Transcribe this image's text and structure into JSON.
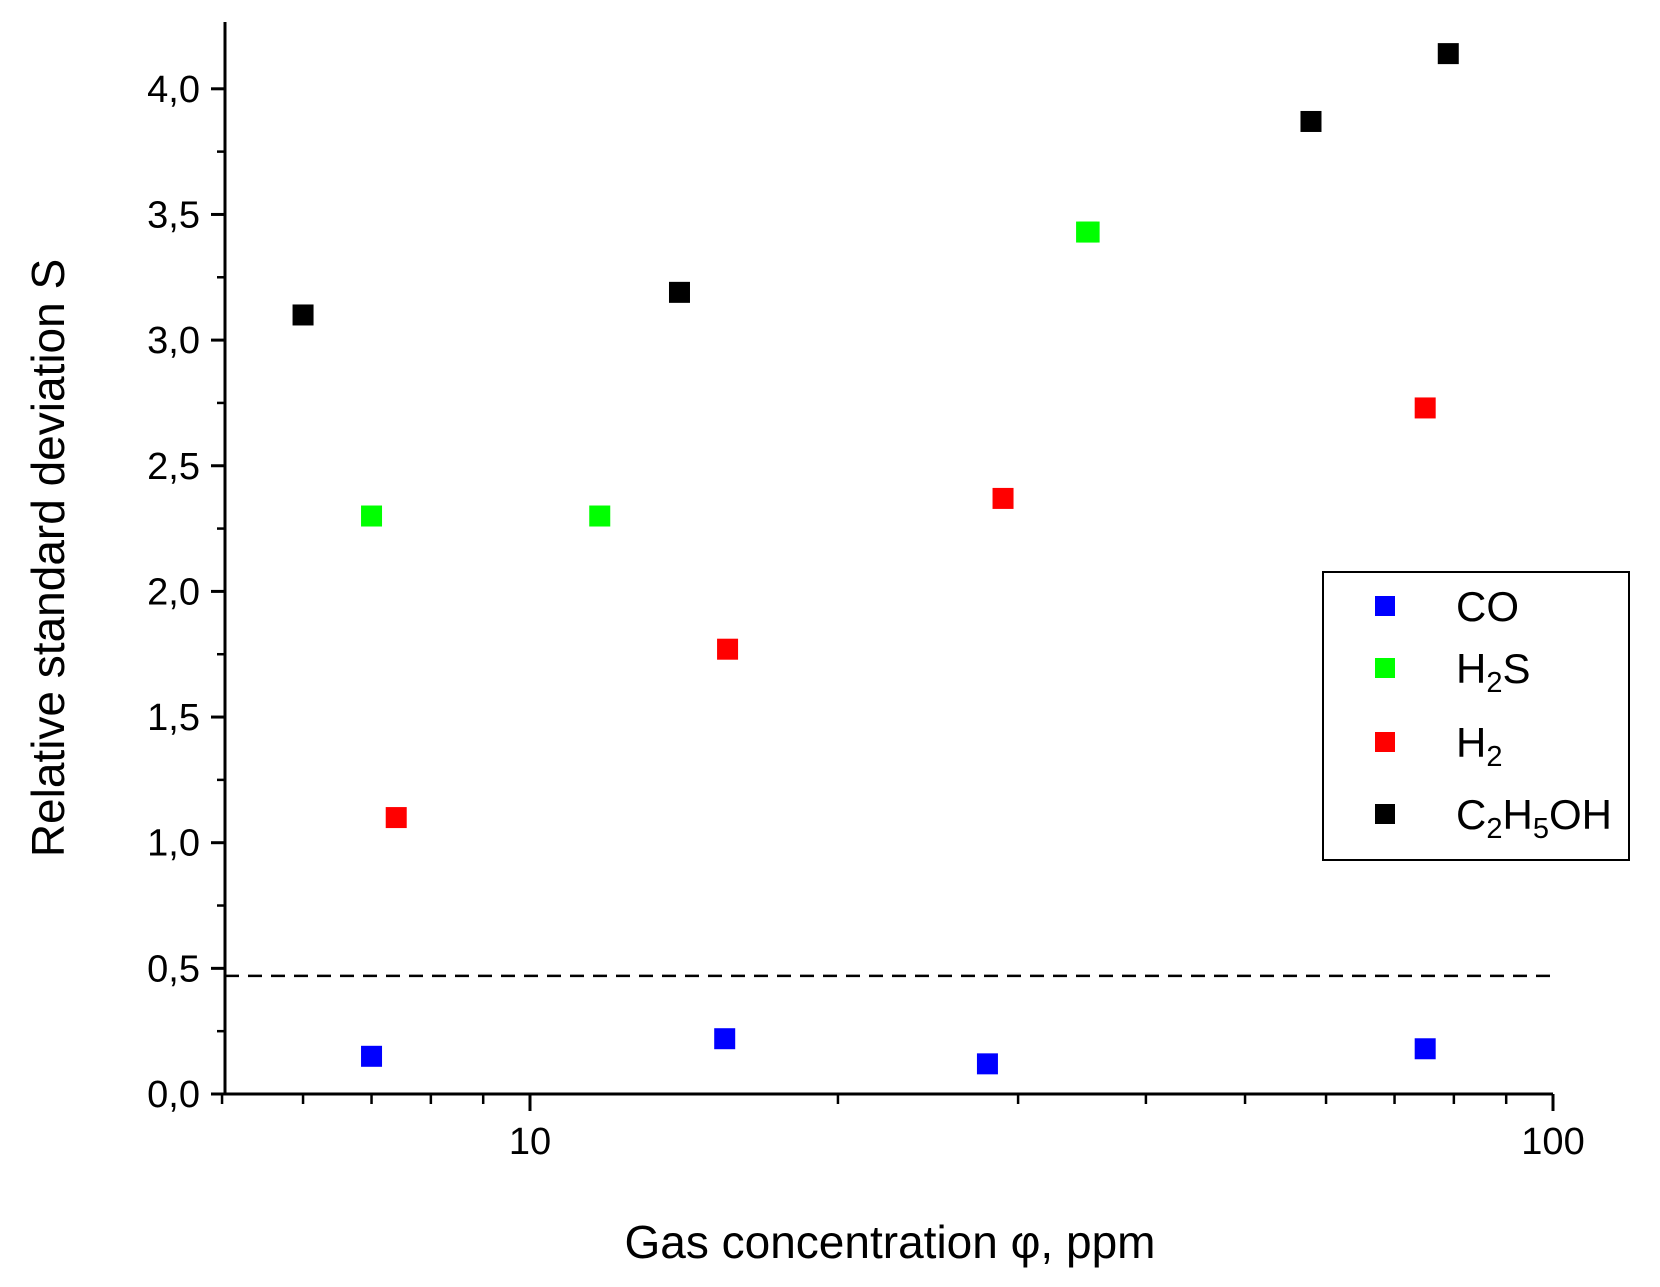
{
  "chart_data": {
    "type": "scatter",
    "xlabel": "Gas concentration φ, ppm",
    "ylabel": "Relative standard deviation S",
    "x_scale": "log",
    "xlim": [
      5,
      100
    ],
    "ylim": [
      0,
      4.25
    ],
    "x_tick_labels": [
      {
        "value": 10,
        "label": "10"
      },
      {
        "value": 100,
        "label": "100"
      }
    ],
    "y_tick_labels": [
      {
        "value": 0,
        "label": "0,0"
      },
      {
        "value": 0.5,
        "label": "0,5"
      },
      {
        "value": 1,
        "label": "1,0"
      },
      {
        "value": 1.5,
        "label": "1,5"
      },
      {
        "value": 2,
        "label": "2,0"
      },
      {
        "value": 2.5,
        "label": "2,5"
      },
      {
        "value": 3,
        "label": "3,0"
      },
      {
        "value": 3.5,
        "label": "3,5"
      },
      {
        "value": 4,
        "label": "4,0"
      }
    ],
    "reference_line": {
      "y": 0.47,
      "style": "dashed"
    },
    "grid": false,
    "legend_position": "right",
    "series": [
      {
        "name": "CO",
        "legend": {
          "base": "CO"
        },
        "color": "#0000ff",
        "marker": "square",
        "x": [
          7,
          15.5,
          28,
          75
        ],
        "y": [
          0.15,
          0.22,
          0.12,
          0.18
        ]
      },
      {
        "name": "H2S",
        "legend": {
          "base": "H",
          "sub": "2",
          "tail": "S"
        },
        "color": "#00ff00",
        "marker": "square",
        "x": [
          7,
          11.7,
          35,
          35.2
        ],
        "y": [
          2.3,
          2.3,
          3.43,
          3.43
        ]
      },
      {
        "name": "H2",
        "legend": {
          "base": "H",
          "sub": "2"
        },
        "color": "#ff0000",
        "marker": "square",
        "x": [
          7.4,
          15.6,
          29,
          75
        ],
        "y": [
          1.1,
          1.77,
          2.37,
          2.73
        ]
      },
      {
        "name": "C2H5OH",
        "legend": {
          "base": "C",
          "sub": "2",
          "tail": "H",
          "sub2": "5",
          "tail2": "OH"
        },
        "color": "#000000",
        "marker": "square",
        "x": [
          6,
          14,
          58,
          79
        ],
        "y": [
          3.1,
          3.19,
          3.87,
          4.14
        ]
      }
    ]
  }
}
